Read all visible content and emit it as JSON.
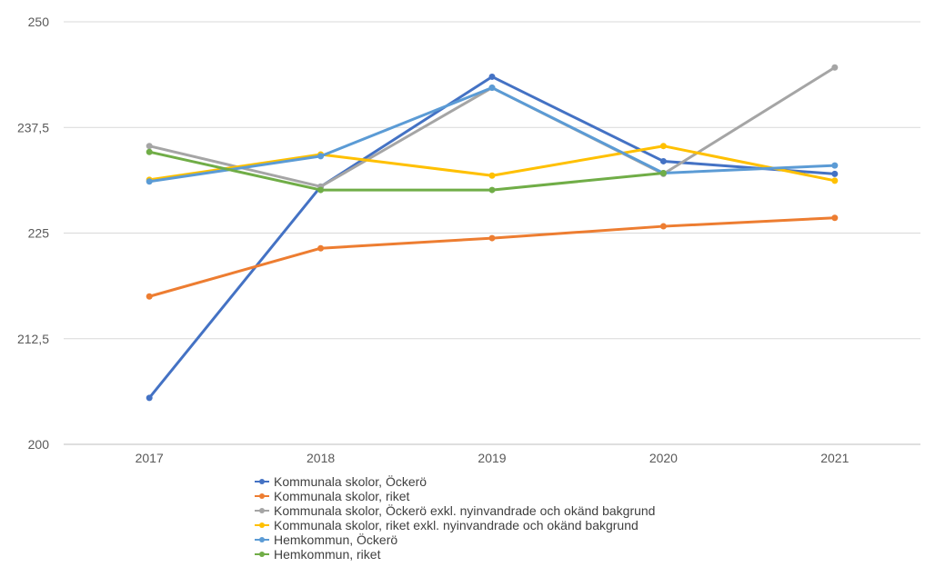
{
  "chart_data": {
    "type": "line",
    "categories": [
      "2017",
      "2018",
      "2019",
      "2020",
      "2021"
    ],
    "ylim": [
      200,
      250
    ],
    "yticks": [
      200,
      212.5,
      225,
      237.5,
      250
    ],
    "ytick_labels": [
      "200",
      "212,5",
      "225",
      "237,5",
      "250"
    ],
    "grid": true,
    "legend_position": "bottom",
    "series": [
      {
        "name": "Kommunala skolor, Öckerö",
        "color": "#4472C4",
        "values": [
          205.5,
          230.5,
          243.5,
          233.5,
          232
        ]
      },
      {
        "name": "Kommunala skolor, riket",
        "color": "#ED7D31",
        "values": [
          217.5,
          223.2,
          224.4,
          225.8,
          226.8
        ]
      },
      {
        "name": "Kommunala skolor, Öckerö exkl. nyinvandrade och okänd bakgrund",
        "color": "#A5A5A5",
        "values": [
          235.3,
          230.5,
          242.2,
          232,
          244.6
        ]
      },
      {
        "name": "Kommunala skolor, riket exkl. nyinvandrade och okänd bakgrund",
        "color": "#FFC000",
        "values": [
          231.3,
          234.3,
          231.8,
          235.3,
          231.2
        ]
      },
      {
        "name": "Hemkommun, Öckerö",
        "color": "#5B9BD5",
        "values": [
          231.1,
          234.1,
          242.2,
          232.1,
          233
        ]
      },
      {
        "name": "Hemkommun, riket",
        "color": "#70AD47",
        "values": [
          234.6,
          230.1,
          230.1,
          232.1,
          null
        ]
      }
    ]
  }
}
